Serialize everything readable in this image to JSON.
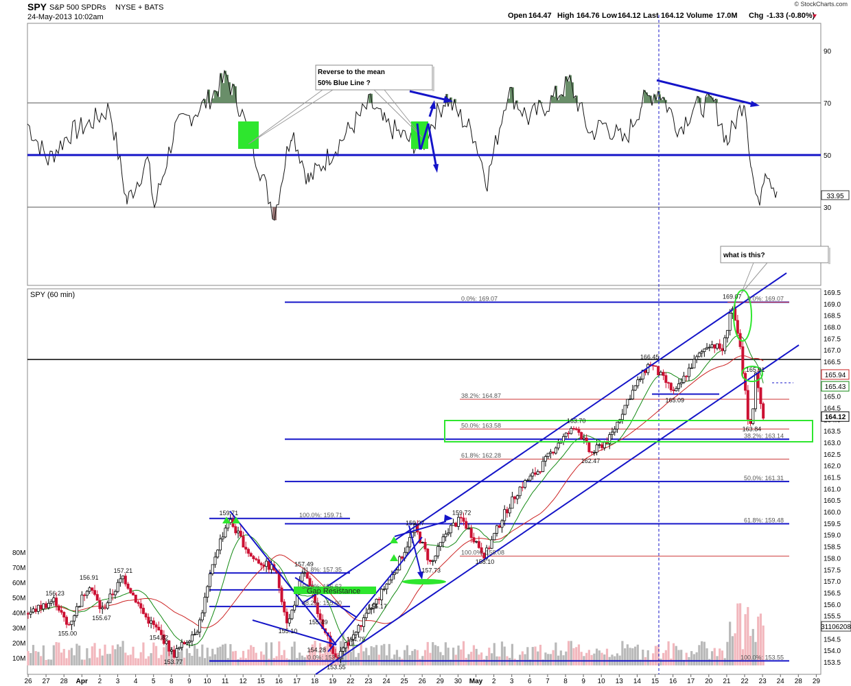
{
  "header": {
    "symbol": "SPY",
    "name": "S&P 500 SPDRs",
    "exchange": "NYSE + BATS",
    "datetime": "24-May-2013 10:02am",
    "watermark": "© StockCharts.com",
    "quote": {
      "open_label": "Open",
      "open": "164.47",
      "high_label": "High",
      "high": "164.76",
      "low_label": "Low",
      "low": "164.12",
      "last_label": "Last",
      "last": "164.12",
      "volume_label": "Volume",
      "volume": "17.0M",
      "chg_label": "Chg",
      "chg": "-1.33 (-0.80%)"
    }
  },
  "colors": {
    "blue": "#1414c8",
    "green_box": "#2ee62e",
    "up": "#ffffff",
    "down": "#cc1133",
    "ma_fast": "#118811",
    "ma_slow": "#cc2222"
  },
  "chart_data": [
    {
      "type": "line",
      "panel": "oscillator",
      "ylim": [
        0,
        100
      ],
      "yticks": [
        30,
        50,
        70,
        90
      ],
      "last_value_label": "33.95",
      "levels": [
        30,
        50,
        70
      ],
      "annotations": [
        "Reverse to the mean\n50% Blue Line ?"
      ]
    },
    {
      "type": "candlestick",
      "panel": "price",
      "title": "SPY (60 min)",
      "ylim": [
        153.2,
        169.8
      ],
      "yticks": [
        "153.5",
        "154.0",
        "154.5",
        "155.0",
        "155.5",
        "156.0",
        "156.5",
        "157.0",
        "157.5",
        "158.0",
        "158.5",
        "159.0",
        "159.5",
        "160.0",
        "160.5",
        "161.0",
        "161.5",
        "162.0",
        "162.5",
        "163.0",
        "163.5",
        "164.0",
        "164.5",
        "165.0",
        "165.5",
        "166.0",
        "166.5",
        "167.0",
        "167.5",
        "168.0",
        "168.5",
        "169.0",
        "169.5"
      ],
      "price_tags": [
        "165.94",
        "165.43",
        "164.12"
      ],
      "volume_tag": "31106208",
      "volume_ticks": [
        "10M",
        "20M",
        "30M",
        "40M",
        "50M",
        "60M",
        "70M",
        "80M"
      ],
      "xticks": [
        "26",
        "27",
        "28",
        "Apr",
        "2",
        "3",
        "4",
        "5",
        "8",
        "9",
        "10",
        "11",
        "12",
        "15",
        "16",
        "17",
        "18",
        "19",
        "22",
        "23",
        "24",
        "25",
        "26",
        "29",
        "30",
        "May",
        "2",
        "3",
        "6",
        "7",
        "8",
        "9",
        "10",
        "13",
        "14",
        "15",
        "16",
        "17",
        "20",
        "21",
        "22",
        "23",
        "24",
        "28",
        "29"
      ],
      "price_labels": [
        {
          "text": "156.23",
          "x": 1.5,
          "y": 156.23
        },
        {
          "text": "155.00",
          "x": 2.2,
          "y": 155.0
        },
        {
          "text": "156.91",
          "x": 3.4,
          "y": 156.91
        },
        {
          "text": "155.67",
          "x": 4.1,
          "y": 155.67
        },
        {
          "text": "157.21",
          "x": 5.3,
          "y": 157.21
        },
        {
          "text": "154.82",
          "x": 7.3,
          "y": 154.82
        },
        {
          "text": "153.77",
          "x": 8.1,
          "y": 153.77
        },
        {
          "text": "159.71",
          "x": 11.2,
          "y": 159.71
        },
        {
          "text": "155.10",
          "x": 14.5,
          "y": 155.1
        },
        {
          "text": "157.49",
          "x": 15.4,
          "y": 157.49
        },
        {
          "text": "155.49",
          "x": 16.2,
          "y": 155.49
        },
        {
          "text": "154.28",
          "x": 16.1,
          "y": 154.28
        },
        {
          "text": "153.55",
          "x": 17.2,
          "y": 153.55
        },
        {
          "text": "154.75",
          "x": 18.3,
          "y": 154.75
        },
        {
          "text": "156.17",
          "x": 19.5,
          "y": 156.17
        },
        {
          "text": "159.27",
          "x": 21.6,
          "y": 159.27
        },
        {
          "text": "157.73",
          "x": 22.5,
          "y": 157.73
        },
        {
          "text": "159.72",
          "x": 24.2,
          "y": 159.72
        },
        {
          "text": "158.10",
          "x": 25.5,
          "y": 158.1
        },
        {
          "text": "163.70",
          "x": 30.6,
          "y": 163.7
        },
        {
          "text": "162.47",
          "x": 31.4,
          "y": 162.47
        },
        {
          "text": "166.45",
          "x": 34.7,
          "y": 166.45
        },
        {
          "text": "165.09",
          "x": 36.1,
          "y": 165.09
        },
        {
          "text": "169.07",
          "x": 39.3,
          "y": 169.07
        },
        {
          "text": "165.91",
          "x": 40.6,
          "y": 165.91
        },
        {
          "text": "163.84",
          "x": 40.4,
          "y": 163.84
        }
      ],
      "fib_labels": [
        {
          "text": "0.0%: 169.07",
          "y": 169.07
        },
        {
          "text": "38.2%: 164.87",
          "y": 164.87
        },
        {
          "text": "50.0%: 163.58",
          "y": 163.58
        },
        {
          "text": "61.8%: 162.28",
          "y": 162.28
        },
        {
          "text": "100.0%: 158.08",
          "y": 158.08
        },
        {
          "text": "0.0%: 169.07",
          "y": 169.07
        },
        {
          "text": "38.2%: 163.14",
          "y": 163.14
        },
        {
          "text": "50.0%: 161.31",
          "y": 161.31
        },
        {
          "text": "61.8%: 159.48",
          "y": 159.48
        },
        {
          "text": "100.0%: 153.55",
          "y": 153.55
        },
        {
          "text": "100.0%: 159.71",
          "y": 159.71
        },
        {
          "text": "61.8%: 157.35",
          "y": 157.35
        },
        {
          "text": "50.0%: 156.62",
          "y": 156.62
        },
        {
          "text": "38.2%: 155.90",
          "y": 155.9
        },
        {
          "text": "0.0%: 153.54",
          "y": 153.54
        }
      ],
      "annotations": [
        "what is this?",
        "Gap Resistance"
      ]
    }
  ]
}
